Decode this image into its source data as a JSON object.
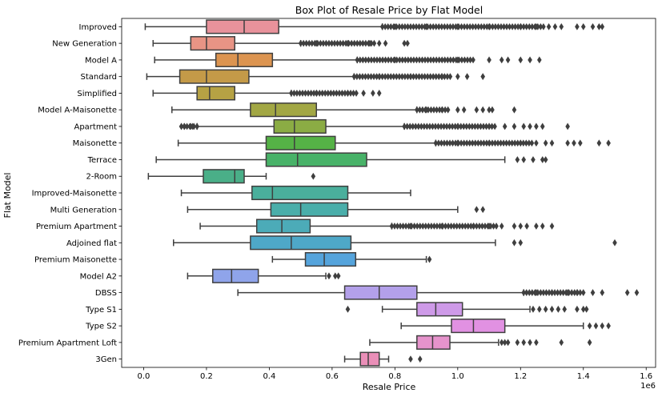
{
  "chart_data": {
    "type": "boxplot",
    "orientation": "horizontal",
    "title": "Box Plot of Resale Price by Flat Model",
    "xlabel": "Resale Price",
    "ylabel": "Flat Model",
    "x_offset_label": "1e6",
    "xlim": [
      -0.07,
      1.63
    ],
    "xticks": [
      0.0,
      0.2,
      0.4,
      0.6,
      0.8,
      1.0,
      1.2,
      1.4,
      1.6
    ],
    "xtick_labels": [
      "0.0",
      "0.2",
      "0.4",
      "0.6",
      "0.8",
      "1.0",
      "1.2",
      "1.4",
      "1.6"
    ],
    "x_scale_multiplier": 1000000,
    "grid": false,
    "categories": [
      "Improved",
      "New Generation",
      "Model A",
      "Standard",
      "Simplified",
      "Model A-Maisonette",
      "Apartment",
      "Maisonette",
      "Terrace",
      "2-Room",
      "Improved-Maisonette",
      "Multi Generation",
      "Premium Apartment",
      "Adjoined flat",
      "Premium Maisonette",
      "Model A2",
      "DBSS",
      "Type S1",
      "Type S2",
      "Premium Apartment Loft",
      "3Gen"
    ],
    "boxes": [
      {
        "name": "Improved",
        "color": "#e8929b",
        "whislo": 0.005,
        "q1": 0.2,
        "med": 0.32,
        "q3": 0.43,
        "whishi": 0.76,
        "fliers": [
          0.8,
          0.9,
          1.0,
          1.1,
          1.2,
          1.25,
          1.29,
          1.31,
          1.33,
          1.38,
          1.4,
          1.43,
          1.45,
          1.46
        ],
        "flier_bands": [
          [
            0.76,
            1.28
          ]
        ]
      },
      {
        "name": "New Generation",
        "color": "#e89485",
        "whislo": 0.03,
        "q1": 0.15,
        "med": 0.2,
        "q3": 0.29,
        "whishi": 0.5,
        "fliers": [
          0.55,
          0.65,
          0.72,
          0.75,
          0.77,
          0.83,
          0.84
        ],
        "flier_bands": [
          [
            0.5,
            0.74
          ]
        ]
      },
      {
        "name": "Model A",
        "color": "#dc9450",
        "whislo": 0.035,
        "q1": 0.23,
        "med": 0.3,
        "q3": 0.41,
        "whishi": 0.68,
        "fliers": [
          0.8,
          1.0,
          1.1,
          1.14,
          1.16,
          1.2,
          1.23,
          1.26
        ],
        "flier_bands": [
          [
            0.68,
            1.05
          ]
        ]
      },
      {
        "name": "Standard",
        "color": "#c49a48",
        "whislo": 0.01,
        "q1": 0.115,
        "med": 0.2,
        "q3": 0.335,
        "whishi": 0.67,
        "fliers": [
          0.75,
          0.85,
          0.95,
          1.0,
          1.03,
          1.08
        ],
        "flier_bands": [
          [
            0.67,
            0.98
          ]
        ]
      },
      {
        "name": "Simplified",
        "color": "#b6a244",
        "whislo": 0.03,
        "q1": 0.17,
        "med": 0.21,
        "q3": 0.29,
        "whishi": 0.47,
        "fliers": [
          0.55,
          0.65,
          0.7,
          0.73,
          0.75
        ],
        "flier_bands": [
          [
            0.47,
            0.68
          ]
        ]
      },
      {
        "name": "Model A-Maisonette",
        "color": "#a2a744",
        "whislo": 0.09,
        "q1": 0.34,
        "med": 0.42,
        "q3": 0.55,
        "whishi": 0.87,
        "fliers": [
          0.9,
          0.95,
          1.0,
          1.02,
          1.06,
          1.08,
          1.1,
          1.11,
          1.18
        ],
        "flier_bands": [
          [
            0.87,
            0.97
          ]
        ]
      },
      {
        "name": "Apartment",
        "color": "#8bac44",
        "whislo": 0.17,
        "q1": 0.415,
        "med": 0.48,
        "q3": 0.58,
        "whishi": 0.83,
        "fliers": [
          0.12,
          0.13,
          0.15,
          0.16,
          0.17,
          1.0,
          1.1,
          1.15,
          1.18,
          1.21,
          1.23,
          1.25,
          1.27,
          1.35
        ],
        "flier_bands": [
          [
            0.83,
            1.12
          ],
          [
            0.12,
            0.16
          ]
        ]
      },
      {
        "name": "Maisonette",
        "color": "#55b246",
        "whislo": 0.11,
        "q1": 0.39,
        "med": 0.48,
        "q3": 0.61,
        "whishi": 0.93,
        "fliers": [
          1.0,
          1.1,
          1.2,
          1.25,
          1.28,
          1.3,
          1.35,
          1.37,
          1.39,
          1.45,
          1.48
        ],
        "flier_bands": [
          [
            0.93,
            1.24
          ]
        ]
      },
      {
        "name": "Terrace",
        "color": "#48b268",
        "whislo": 0.04,
        "q1": 0.39,
        "med": 0.49,
        "q3": 0.71,
        "whishi": 1.15,
        "fliers": [
          1.19,
          1.21,
          1.24,
          1.27,
          1.28
        ],
        "flier_bands": []
      },
      {
        "name": "2-Room",
        "color": "#4aaf88",
        "whislo": 0.015,
        "q1": 0.19,
        "med": 0.29,
        "q3": 0.32,
        "whishi": 0.39,
        "fliers": [
          0.54
        ],
        "flier_bands": []
      },
      {
        "name": "Improved-Maisonette",
        "color": "#4aaf9c",
        "whislo": 0.12,
        "q1": 0.345,
        "med": 0.41,
        "q3": 0.65,
        "whishi": 0.85,
        "fliers": [],
        "flier_bands": []
      },
      {
        "name": "Multi Generation",
        "color": "#4aaeaa",
        "whislo": 0.14,
        "q1": 0.405,
        "med": 0.5,
        "q3": 0.65,
        "whishi": 1.0,
        "fliers": [
          1.06,
          1.08
        ],
        "flier_bands": []
      },
      {
        "name": "Premium Apartment",
        "color": "#4cabb8",
        "whislo": 0.18,
        "q1": 0.36,
        "med": 0.44,
        "q3": 0.53,
        "whishi": 0.79,
        "fliers": [
          0.85,
          0.95,
          1.05,
          1.1,
          1.14,
          1.18,
          1.2,
          1.22,
          1.25,
          1.27,
          1.3
        ],
        "flier_bands": [
          [
            0.79,
            1.13
          ]
        ]
      },
      {
        "name": "Adjoined flat",
        "color": "#4ea8c8",
        "whislo": 0.095,
        "q1": 0.34,
        "med": 0.47,
        "q3": 0.66,
        "whishi": 1.12,
        "fliers": [
          1.18,
          1.2,
          1.5
        ],
        "flier_bands": []
      },
      {
        "name": "Premium Maisonette",
        "color": "#55a4dc",
        "whislo": 0.41,
        "q1": 0.515,
        "med": 0.575,
        "q3": 0.675,
        "whishi": 0.9,
        "fliers": [
          0.91
        ],
        "flier_bands": []
      },
      {
        "name": "Model A2",
        "color": "#8fa4ea",
        "whislo": 0.14,
        "q1": 0.22,
        "med": 0.28,
        "q3": 0.365,
        "whishi": 0.58,
        "fliers": [
          0.59,
          0.61,
          0.62
        ],
        "flier_bands": []
      },
      {
        "name": "DBSS",
        "color": "#b3a0ea",
        "whislo": 0.3,
        "q1": 0.64,
        "med": 0.75,
        "q3": 0.87,
        "whishi": 1.21,
        "fliers": [
          1.25,
          1.3,
          1.35,
          1.38,
          1.4,
          1.43,
          1.46,
          1.54,
          1.57
        ],
        "flier_bands": [
          [
            1.21,
            1.39
          ]
        ]
      },
      {
        "name": "Type S1",
        "color": "#ce9ae8",
        "whislo": 0.76,
        "q1": 0.87,
        "med": 0.93,
        "q3": 1.015,
        "whishi": 1.23,
        "fliers": [
          0.65,
          1.24,
          1.26,
          1.28,
          1.3,
          1.32,
          1.34,
          1.38,
          1.4,
          1.41
        ],
        "flier_bands": []
      },
      {
        "name": "Type S2",
        "color": "#e191e2",
        "whislo": 0.82,
        "q1": 0.98,
        "med": 1.05,
        "q3": 1.15,
        "whishi": 1.4,
        "fliers": [
          1.42,
          1.44,
          1.46,
          1.48
        ],
        "flier_bands": []
      },
      {
        "name": "Premium Apartment Loft",
        "color": "#e693cc",
        "whislo": 0.72,
        "q1": 0.87,
        "med": 0.92,
        "q3": 0.975,
        "whishi": 1.13,
        "fliers": [
          1.14,
          1.15,
          1.16,
          1.19,
          1.21,
          1.23,
          1.25,
          1.33,
          1.42
        ],
        "flier_bands": []
      },
      {
        "name": "3Gen",
        "color": "#ea8fb8",
        "whislo": 0.64,
        "q1": 0.69,
        "med": 0.715,
        "q3": 0.75,
        "whishi": 0.78,
        "fliers": [
          0.85,
          0.88
        ],
        "flier_bands": []
      }
    ]
  }
}
